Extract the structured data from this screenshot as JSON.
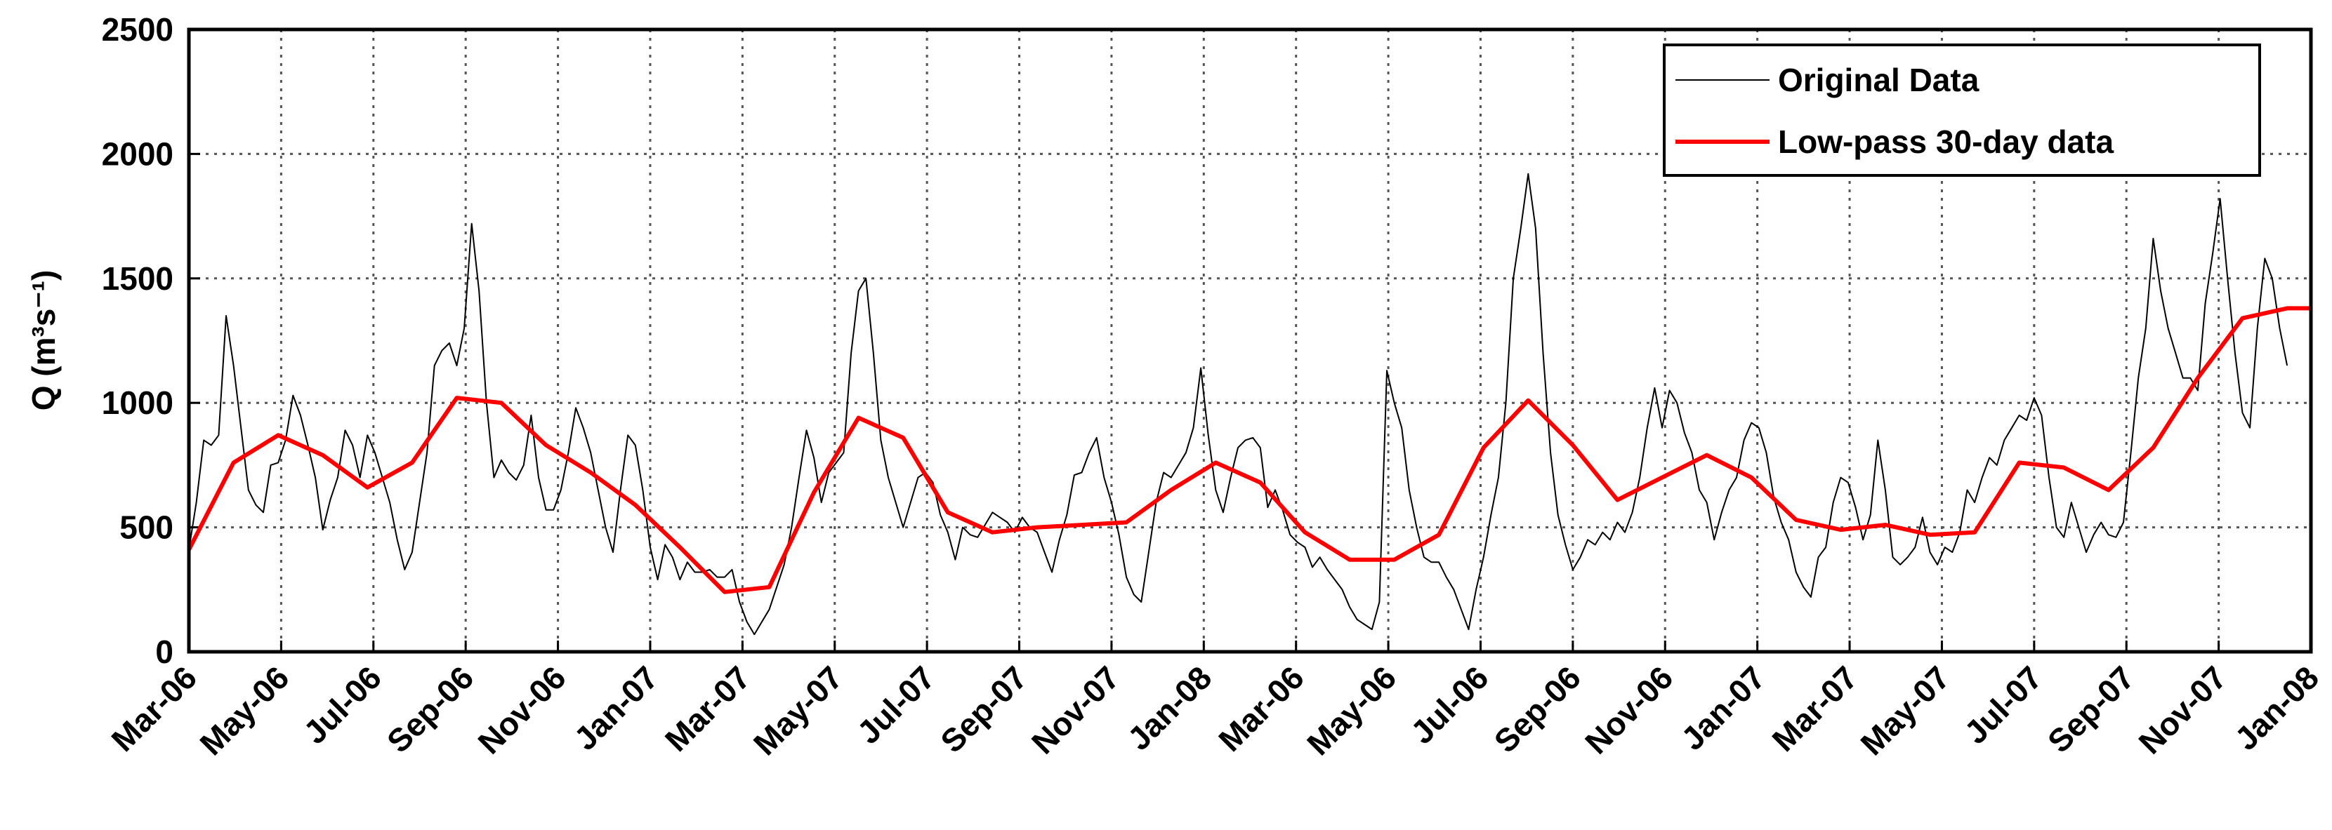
{
  "chart_data": {
    "type": "line",
    "ylabel": "Q (m³s⁻¹)",
    "x": [
      0,
      1,
      2,
      3,
      4,
      5,
      6,
      7,
      8,
      9,
      10,
      11,
      12,
      13,
      14,
      15,
      16,
      17,
      18,
      19,
      20,
      21,
      22,
      23,
      24,
      25,
      26,
      27,
      28,
      29,
      30,
      31,
      32,
      33,
      34,
      35,
      36,
      37,
      38,
      39,
      40,
      41,
      42,
      43,
      44,
      45,
      46,
      47,
      48,
      49,
      50,
      51,
      52,
      53,
      54,
      55,
      56,
      57,
      58,
      59,
      60,
      61,
      62,
      63,
      64,
      65,
      66,
      67,
      68,
      69,
      70,
      71,
      72,
      73,
      74,
      75,
      76,
      77,
      78,
      79,
      80,
      81,
      82,
      83,
      84,
      85,
      86,
      87,
      88,
      89,
      90,
      91,
      92,
      93,
      94,
      95,
      96,
      97,
      98,
      99,
      100,
      101,
      102,
      103,
      104,
      105,
      106,
      107,
      108,
      109,
      110,
      111,
      112,
      113,
      114,
      115,
      116,
      117,
      118,
      119,
      120,
      121,
      122,
      123,
      124,
      125,
      126,
      127,
      128,
      129,
      130,
      131,
      132,
      133,
      134,
      135,
      136,
      137,
      138,
      139,
      140,
      141,
      142,
      143,
      144,
      145,
      146,
      147,
      148,
      149,
      150,
      151,
      152,
      153,
      154,
      155,
      156,
      157,
      158,
      159,
      160,
      161,
      162,
      163,
      164,
      165,
      166,
      167,
      168,
      169,
      170,
      171,
      172,
      173,
      174,
      175,
      176,
      177,
      178,
      179,
      180,
      181,
      182,
      183,
      184,
      185,
      186,
      187,
      188,
      189,
      190,
      191,
      192,
      193,
      194,
      195,
      196,
      197,
      198,
      199,
      200,
      201,
      202,
      203,
      204,
      205,
      206,
      207,
      208,
      209,
      210,
      211,
      212,
      213,
      214,
      215,
      216,
      217,
      218,
      219,
      220,
      221,
      222,
      223,
      224,
      225,
      226,
      227,
      228,
      229,
      230,
      231,
      232,
      233,
      234,
      235,
      236,
      237,
      238,
      239,
      240,
      241,
      242,
      243,
      244,
      245,
      246,
      247,
      248,
      249,
      250,
      251,
      252,
      253,
      254,
      255,
      256,
      257,
      258,
      259,
      260,
      261,
      262,
      263,
      264,
      265,
      266,
      267,
      268,
      269,
      270,
      271,
      272,
      273,
      274,
      275,
      276,
      277,
      278,
      279,
      280,
      281,
      282
    ],
    "series": [
      {
        "name": "Original Data",
        "color": "#000000",
        "width": 2,
        "values": [
          410,
          600,
          850,
          830,
          870,
          1350,
          1150,
          900,
          650,
          590,
          560,
          750,
          760,
          850,
          1030,
          950,
          830,
          700,
          490,
          610,
          700,
          890,
          830,
          700,
          870,
          800,
          700,
          600,
          450,
          330,
          400,
          600,
          800,
          1150,
          1210,
          1240,
          1150,
          1300,
          1720,
          1450,
          1000,
          700,
          770,
          720,
          690,
          750,
          950,
          700,
          570,
          570,
          650,
          800,
          980,
          900,
          800,
          650,
          500,
          400,
          650,
          870,
          830,
          650,
          420,
          290,
          430,
          380,
          290,
          360,
          320,
          320,
          330,
          300,
          300,
          330,
          200,
          120,
          70,
          120,
          170,
          260,
          350,
          500,
          700,
          890,
          780,
          600,
          720,
          760,
          800,
          1200,
          1450,
          1500,
          1200,
          850,
          700,
          600,
          500,
          600,
          700,
          720,
          680,
          550,
          480,
          370,
          500,
          470,
          460,
          510,
          560,
          540,
          520,
          480,
          540,
          500,
          480,
          400,
          320,
          450,
          550,
          710,
          720,
          800,
          860,
          700,
          600,
          470,
          300,
          230,
          200,
          400,
          600,
          720,
          700,
          750,
          800,
          900,
          1140,
          870,
          650,
          560,
          700,
          820,
          850,
          860,
          820,
          580,
          650,
          570,
          470,
          440,
          420,
          340,
          380,
          330,
          290,
          250,
          180,
          130,
          110,
          90,
          200,
          1130,
          1000,
          900,
          650,
          500,
          380,
          360,
          360,
          300,
          250,
          170,
          90,
          250,
          380,
          550,
          700,
          1000,
          1500,
          1700,
          1920,
          1700,
          1200,
          800,
          550,
          430,
          330,
          380,
          450,
          430,
          480,
          450,
          520,
          480,
          560,
          700,
          900,
          1060,
          900,
          1050,
          1000,
          880,
          800,
          650,
          600,
          450,
          560,
          650,
          700,
          850,
          920,
          900,
          800,
          620,
          520,
          450,
          320,
          260,
          220,
          380,
          420,
          600,
          700,
          680,
          580,
          450,
          550,
          850,
          650,
          380,
          350,
          380,
          420,
          540,
          400,
          350,
          420,
          400,
          480,
          650,
          600,
          700,
          780,
          750,
          850,
          900,
          950,
          930,
          1020,
          950,
          700,
          500,
          460,
          600,
          500,
          400,
          470,
          520,
          470,
          460,
          520,
          800,
          1100,
          1300,
          1660,
          1450,
          1300,
          1200,
          1100,
          1100,
          1050,
          1400,
          1600,
          1820,
          1500,
          1200,
          960,
          900,
          1300,
          1580,
          1500,
          1300,
          1150
        ]
      },
      {
        "name": "Low-pass 30-day data",
        "color": "#ff0000",
        "width": 6,
        "x": [
          0,
          6,
          12,
          18,
          24,
          30,
          36,
          42,
          48,
          54,
          60,
          66,
          72,
          78,
          84,
          90,
          96,
          102,
          108,
          114,
          120,
          126,
          132,
          138,
          144,
          150,
          156,
          162,
          168,
          174,
          180,
          186,
          192,
          198,
          204,
          210,
          216,
          222,
          228,
          234,
          240,
          246,
          252,
          258,
          264,
          270,
          276,
          282,
          285
        ],
        "values": [
          410,
          760,
          870,
          790,
          660,
          760,
          1020,
          1000,
          830,
          720,
          590,
          420,
          240,
          260,
          640,
          940,
          860,
          560,
          480,
          500,
          510,
          520,
          650,
          760,
          680,
          480,
          370,
          370,
          470,
          820,
          1010,
          830,
          610,
          700,
          790,
          700,
          530,
          490,
          510,
          470,
          480,
          760,
          740,
          650,
          820,
          1100,
          1340,
          1380,
          1380
        ]
      }
    ],
    "xlim": [
      0,
      285.2
    ],
    "xticks": [
      {
        "value": 0,
        "label": "Mar-06"
      },
      {
        "value": 12.4,
        "label": "May-06"
      },
      {
        "value": 24.8,
        "label": "Jul-06"
      },
      {
        "value": 37.2,
        "label": "Sep-06"
      },
      {
        "value": 49.6,
        "label": "Nov-06"
      },
      {
        "value": 62,
        "label": "Jan-07"
      },
      {
        "value": 74.4,
        "label": "Mar-07"
      },
      {
        "value": 86.8,
        "label": "May-07"
      },
      {
        "value": 99.2,
        "label": "Jul-07"
      },
      {
        "value": 111.6,
        "label": "Sep-07"
      },
      {
        "value": 124,
        "label": "Nov-07"
      },
      {
        "value": 136.4,
        "label": "Jan-08"
      },
      {
        "value": 148.8,
        "label": "Mar-06"
      },
      {
        "value": 161.2,
        "label": "May-06"
      },
      {
        "value": 173.6,
        "label": "Jul-06"
      },
      {
        "value": 186,
        "label": "Sep-06"
      },
      {
        "value": 198.4,
        "label": "Nov-06"
      },
      {
        "value": 210.8,
        "label": "Jan-07"
      },
      {
        "value": 223.2,
        "label": "Mar-07"
      },
      {
        "value": 235.6,
        "label": "May-07"
      },
      {
        "value": 248,
        "label": "Jul-07"
      },
      {
        "value": 260.4,
        "label": "Sep-07"
      },
      {
        "value": 272.8,
        "label": "Nov-07"
      },
      {
        "value": 285.2,
        "label": "Jan-08"
      }
    ],
    "ylim": [
      0,
      2500
    ],
    "yticks": [
      0,
      500,
      1000,
      1500,
      2000,
      2500
    ],
    "grid": true,
    "legend": "northeast"
  }
}
